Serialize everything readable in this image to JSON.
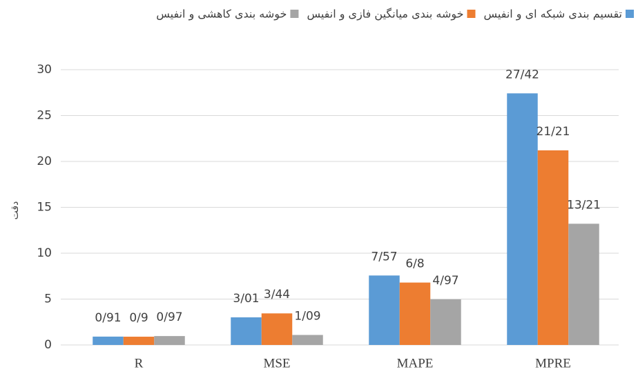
{
  "chart_data": {
    "type": "bar",
    "ylabel": "دقت",
    "categories": [
      "R",
      "MSE",
      "MAPE",
      "MPRE"
    ],
    "series": [
      {
        "name": "تقسیم بندی شبکه ای و انفیس",
        "color": "#5b9bd5",
        "values": [
          0.91,
          3.01,
          7.57,
          27.42
        ],
        "value_labels": [
          "0/91",
          "3/01",
          "7/57",
          "27/42"
        ]
      },
      {
        "name": "خوشه بندی میانگین فازی و انفیس",
        "color": "#ed7d31",
        "values": [
          0.9,
          3.44,
          6.8,
          21.21
        ],
        "value_labels": [
          "0/9",
          "3/44",
          "6/8",
          "21/21"
        ]
      },
      {
        "name": "خوشه بندی کاهشی و انفیس",
        "color": "#a5a5a5",
        "values": [
          0.97,
          1.09,
          4.97,
          13.21
        ],
        "value_labels": [
          "0/97",
          "1/09",
          "4/97",
          "13/21"
        ]
      }
    ],
    "ylim": [
      0,
      30
    ],
    "yticks": [
      0,
      5,
      10,
      15,
      20,
      25,
      30
    ],
    "grid": true,
    "legend": "top"
  }
}
